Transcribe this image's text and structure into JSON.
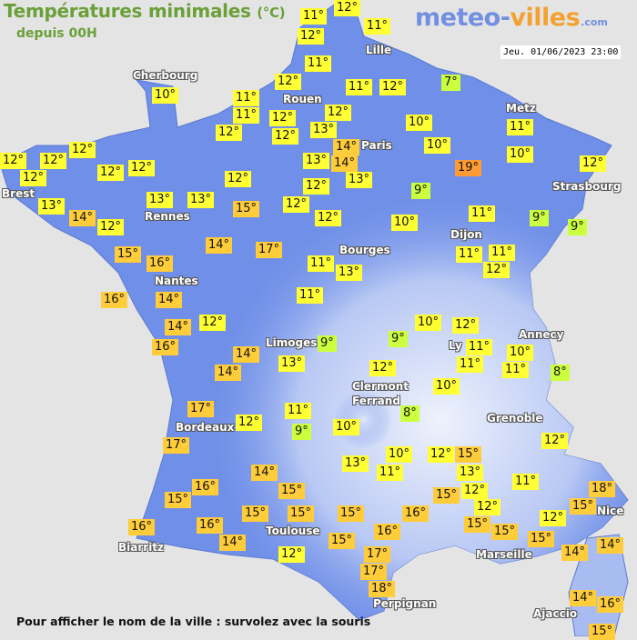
{
  "header": {
    "title": "Températures minimales",
    "unit": "(°C)",
    "subtitle": "depuis 00H",
    "logo_part1": "meteo-",
    "logo_part2": "villes",
    "logo_suffix": ".com",
    "datetime": "Jeu. 01/06/2023 23:00"
  },
  "colors": {
    "cold": "#ccff3e",
    "mild": "#ffff33",
    "warm": "#ffcc3a",
    "hot": "#ff9b33",
    "land": "#6f8fe8",
    "sea": "#e4e4e4",
    "title": "#6aa038"
  },
  "cities": [
    "Lille",
    "Cherbourg",
    "Rouen",
    "Metz",
    "Paris",
    "Brest",
    "Strasbourg",
    "Rennes",
    "Dijon",
    "Bourges",
    "Nantes",
    "Annecy",
    "Limoges",
    "Ly",
    "Clermont",
    "Ferrand",
    "Grenoble",
    "Bordeaux",
    "Toulouse",
    "Nice",
    "Biarritz",
    "Marseille",
    "Perpignan",
    "Ajaccio"
  ],
  "temperatures": [
    "12°",
    "11°",
    "11°",
    "12°",
    "11°",
    "7°",
    "12°",
    "11°",
    "12°",
    "10°",
    "11°",
    "11°",
    "12°",
    "12°",
    "10°",
    "11°",
    "12°",
    "12°",
    "13°",
    "14°",
    "10°",
    "10°",
    "12°",
    "12°",
    "12°",
    "12°",
    "12°",
    "12°",
    "13°",
    "14°",
    "19°",
    "12°",
    "13°",
    "12°",
    "12°",
    "9°",
    "13°",
    "13°",
    "13°",
    "15°",
    "12°",
    "11°",
    "14°",
    "12°",
    "10°",
    "9°",
    "9°",
    "12°",
    "14°",
    "17°",
    "15°",
    "16°",
    "11°",
    "11°",
    "11°",
    "12°",
    "13°",
    "16°",
    "14°",
    "11°",
    "12°",
    "10°",
    "12°",
    "14°",
    "9°",
    "9°",
    "11°",
    "10°",
    "16°",
    "14°",
    "11°",
    "11°",
    "13°",
    "8°",
    "12°",
    "14°",
    "10°",
    "17°",
    "11°",
    "8°",
    "12°",
    "10°",
    "9°",
    "12°",
    "17°",
    "10°",
    "12°",
    "15°",
    "13°",
    "11°",
    "13°",
    "11°",
    "14°",
    "16°",
    "15°",
    "12°",
    "18°",
    "16°",
    "15°",
    "15°",
    "15°",
    "12°",
    "15°",
    "15°",
    "15°",
    "12°",
    "15°",
    "15°",
    "16°",
    "16°",
    "16°",
    "14°",
    "15°",
    "15°",
    "14°",
    "14°",
    "12°",
    "17°",
    "17°",
    "18°",
    "14°",
    "16°",
    "15°"
  ],
  "footer": "Pour afficher le nom de la ville : survolez avec la souris"
}
